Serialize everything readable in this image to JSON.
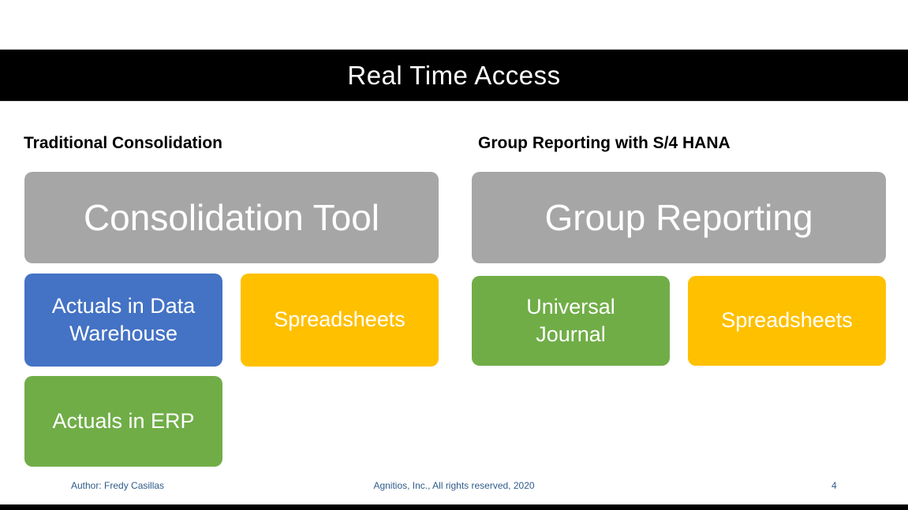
{
  "header": {
    "title": "Real Time Access"
  },
  "left_column": {
    "heading": "Traditional Consolidation",
    "main_box": "Consolidation Tool",
    "box1": "Actuals in Data Warehouse",
    "box2": "Spreadsheets",
    "box3": "Actuals in ERP"
  },
  "right_column": {
    "heading": "Group Reporting with S/4 HANA",
    "main_box": "Group Reporting",
    "box1": "Universal Journal",
    "box2": "Spreadsheets"
  },
  "footer": {
    "author": "Author: Fredy Casillas",
    "copyright": "Agnitios, Inc., All rights reserved, 2020",
    "page_number": "4"
  },
  "colors": {
    "title_bar_bg": "#000000",
    "title_text": "#ffffff",
    "heading_text": "#000000",
    "gray_box": "#a6a6a6",
    "blue_box": "#4472c4",
    "yellow_box": "#ffc000",
    "green_box": "#70ad47",
    "box_text": "#ffffff",
    "footer_text": "#2e5b8a",
    "bottom_bar_bg": "#000000"
  }
}
